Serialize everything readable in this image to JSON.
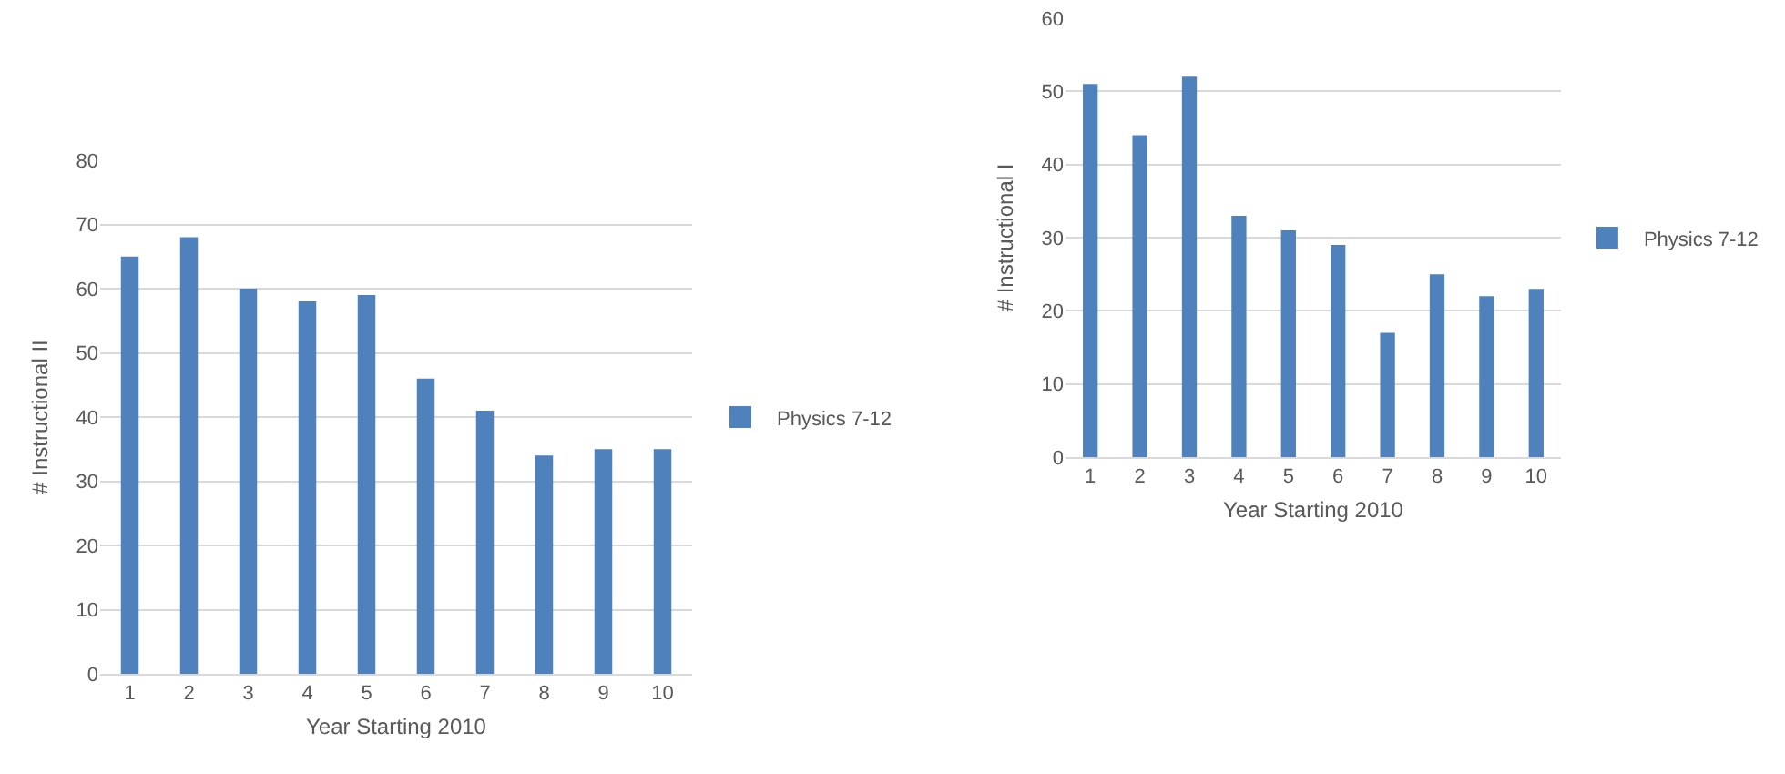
{
  "chart_data": [
    {
      "type": "bar",
      "xlabel": "Year Starting 2010",
      "ylabel": "# Instructional II",
      "categories": [
        "1",
        "2",
        "3",
        "4",
        "5",
        "6",
        "7",
        "8",
        "9",
        "10"
      ],
      "series": [
        {
          "name": "Physics 7-12",
          "color": "#4f81bd",
          "values": [
            65,
            68,
            60,
            58,
            59,
            46,
            41,
            34,
            35,
            35
          ]
        }
      ],
      "ylim": [
        0,
        80
      ],
      "yticks": [
        0,
        10,
        20,
        30,
        40,
        50,
        60,
        70,
        80
      ],
      "grid": "y",
      "legend": "right"
    },
    {
      "type": "bar",
      "xlabel": "Year Starting 2010",
      "ylabel": "# Instructional I",
      "categories": [
        "1",
        "2",
        "3",
        "4",
        "5",
        "6",
        "7",
        "8",
        "9",
        "10"
      ],
      "series": [
        {
          "name": "Physics 7-12",
          "color": "#4f81bd",
          "values": [
            51,
            44,
            52,
            33,
            31,
            29,
            17,
            25,
            22,
            23
          ]
        }
      ],
      "ylim": [
        0,
        60
      ],
      "yticks": [
        0,
        10,
        20,
        30,
        40,
        50,
        60
      ],
      "grid": "y",
      "legend": "right"
    }
  ]
}
